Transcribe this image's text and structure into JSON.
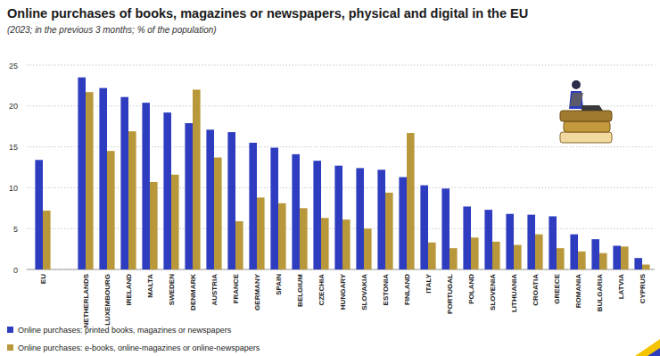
{
  "chart_data": {
    "type": "bar",
    "title": "Online purchases of books, magazines or newspapers, physical and digital in the EU",
    "subtitle": "(2023; in the previous 3 months; % of the population)",
    "categories": [
      "EU",
      null,
      "NETHERLANDS",
      "LUXEMBOURG",
      "IRELAND",
      "MALTA",
      "SWEDEN",
      "DENMARK",
      "AUSTRIA",
      "FRANCE",
      "GERMANY",
      "SPAIN",
      "BELGIUM",
      "CZECHIA",
      "HUNGARY",
      "SLOVAKIA",
      "ESTONIA",
      "FINLAND",
      "ITALY",
      "PORTUGAL",
      "POLAND",
      "SLOVENIA",
      "LITHUANIA",
      "CROATIA",
      "GREECE",
      "ROMANIA",
      "BULGARIA",
      "LATVIA",
      "CYPRUS"
    ],
    "series": [
      {
        "name": "Online purchases: printed books, magazines or newspapers",
        "color": "#2e3dbf",
        "values": [
          13.4,
          null,
          23.5,
          22.2,
          21.1,
          20.4,
          19.2,
          17.9,
          17.1,
          16.8,
          15.5,
          14.9,
          14.1,
          13.3,
          12.7,
          12.4,
          12.2,
          11.3,
          10.3,
          9.9,
          7.7,
          7.3,
          6.8,
          6.7,
          6.5,
          4.3,
          3.7,
          2.9,
          1.4
        ]
      },
      {
        "name": "Online purchases: e-books, online-magazines or online-newspapers",
        "color": "#b8983a",
        "values": [
          7.2,
          null,
          21.7,
          14.5,
          16.9,
          10.7,
          11.6,
          22.0,
          13.7,
          5.9,
          8.8,
          8.1,
          7.5,
          6.3,
          6.1,
          5.0,
          9.4,
          16.7,
          3.3,
          2.6,
          3.9,
          3.4,
          3.0,
          4.3,
          2.6,
          2.2,
          2.0,
          2.8,
          0.6
        ]
      }
    ],
    "ylim": [
      0,
      25
    ],
    "yticks": [
      0,
      5,
      10,
      15,
      20,
      25
    ],
    "grid": true,
    "legend": "bottom"
  }
}
